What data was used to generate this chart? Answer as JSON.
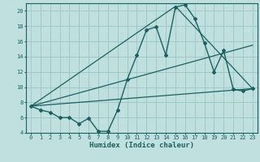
{
  "xlabel": "Humidex (Indice chaleur)",
  "bg_color": "#c0e0e0",
  "grid_color": "#a0c8c8",
  "line_color": "#1a6060",
  "xlim": [
    -0.5,
    23.5
  ],
  "ylim": [
    4,
    21
  ],
  "x_ticks": [
    0,
    1,
    2,
    3,
    4,
    5,
    6,
    7,
    8,
    9,
    10,
    11,
    12,
    13,
    14,
    15,
    16,
    17,
    18,
    19,
    20,
    21,
    22,
    23
  ],
  "y_ticks": [
    4,
    6,
    8,
    10,
    12,
    14,
    16,
    18,
    20
  ],
  "line1_x": [
    0,
    1,
    2,
    3,
    4,
    5,
    6,
    7,
    8,
    9,
    10,
    11,
    12,
    13,
    14,
    15,
    16,
    17,
    18,
    19,
    20,
    21,
    22,
    23
  ],
  "line1_y": [
    7.5,
    7.0,
    6.7,
    6.0,
    6.0,
    5.2,
    5.9,
    4.2,
    4.2,
    7.0,
    11.0,
    14.2,
    17.5,
    17.9,
    14.2,
    20.5,
    20.8,
    19.0,
    15.8,
    12.0,
    14.8,
    9.7,
    9.5,
    9.8
  ],
  "line2_x": [
    0,
    23
  ],
  "line2_y": [
    7.5,
    9.8
  ],
  "line3_x": [
    0,
    15,
    23
  ],
  "line3_y": [
    7.5,
    20.6,
    9.8
  ],
  "line4_x": [
    0,
    23
  ],
  "line4_y": [
    7.5,
    15.5
  ],
  "tick_fontsize": 5.0,
  "xlabel_fontsize": 6.5
}
